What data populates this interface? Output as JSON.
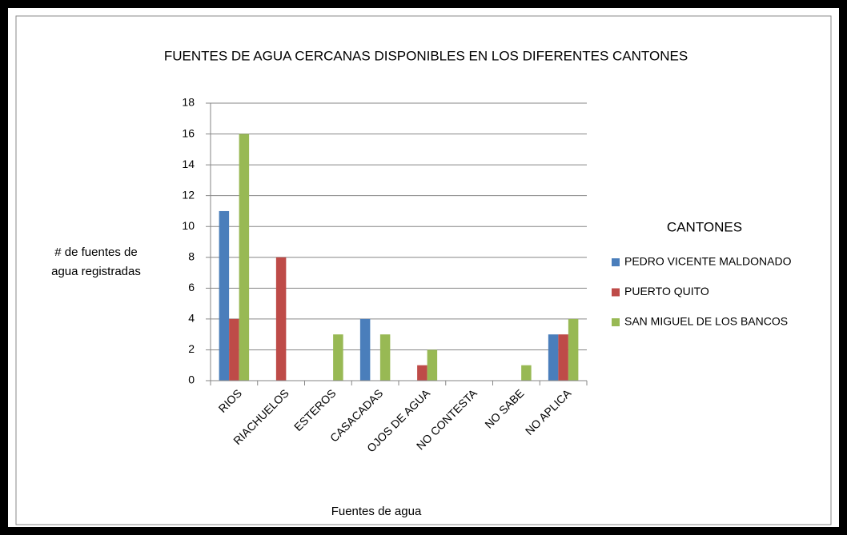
{
  "chart_data": {
    "type": "bar",
    "title": "FUENTES DE AGUA CERCANAS DISPONIBLES EN LOS DIFERENTES CANTONES",
    "y_label": [
      "# de fuentes de",
      "agua registradas"
    ],
    "x_label": "Fuentes de agua",
    "legend_title": "CANTONES",
    "legend": "right",
    "grid": true,
    "categories": [
      "RIOS",
      "RIACHUELOS",
      "ESTEROS",
      "CASACADAS",
      "OJOS DE AGUA",
      "NO CONTESTA",
      "NO SABE",
      "NO APLICA"
    ],
    "series": [
      {
        "name": "PEDRO VICENTE  MALDONADO",
        "color": "#4a7ebb",
        "values": [
          11,
          0,
          0,
          4,
          0,
          0,
          0,
          3
        ]
      },
      {
        "name": "PUERTO  QUITO",
        "color": "#be4b48",
        "values": [
          4,
          8,
          0,
          0,
          1,
          0,
          0,
          3
        ]
      },
      {
        "name": "SAN MIGUEL  DE LOS BANCOS",
        "color": "#98b954",
        "values": [
          16,
          0,
          3,
          3,
          2,
          0,
          1,
          4
        ]
      }
    ],
    "ylim": [
      0,
      18
    ],
    "yticks": [
      0,
      2,
      4,
      6,
      8,
      10,
      12,
      14,
      16,
      18
    ]
  }
}
